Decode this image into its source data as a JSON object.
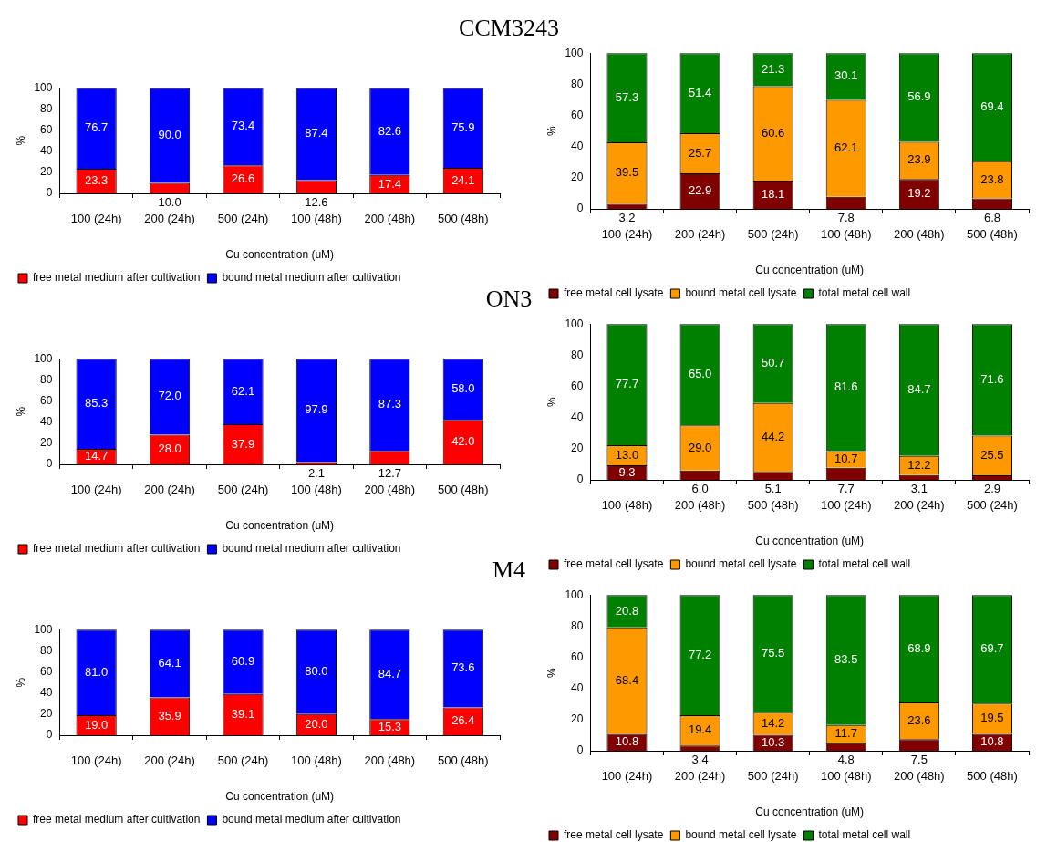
{
  "chart_data": [
    {
      "type": "bar",
      "stacked": true,
      "title": "CCM3243",
      "xlabel": "Cu concentration (uM)",
      "ylabel": "%",
      "categories": [
        "100 (24h)",
        "200 (24h)",
        "500 (24h)",
        "100 (48h)",
        "200 (48h)",
        "500 (48h)"
      ],
      "ylim": [
        0,
        100
      ],
      "yticks": [
        0,
        20,
        40,
        60,
        80,
        100
      ],
      "grid": false,
      "legend": "bottom",
      "series": [
        {
          "name": "free metal medium after cultivation",
          "color": "#ff0000",
          "values": [
            23.3,
            10.0,
            26.6,
            12.6,
            17.4,
            24.1
          ],
          "value_labels": [
            "23.3",
            "10.0",
            "26.6",
            "12.6",
            "17.4",
            "24.1"
          ]
        },
        {
          "name": "bound metal medium after cultivation",
          "color": "#0000ff",
          "values": [
            76.7,
            90.0,
            73.4,
            87.4,
            82.6,
            75.9
          ],
          "value_labels": [
            "76.7",
            "90.0",
            "73.4",
            "87.4",
            "82.6",
            "75.9"
          ]
        }
      ]
    },
    {
      "type": "bar",
      "stacked": true,
      "xlabel": "Cu concentration (uM)",
      "ylabel": "%",
      "categories": [
        "100 (24h)",
        "200 (24h)",
        "500 (24h)",
        "100 (48h)",
        "200 (48h)",
        "500 (48h)"
      ],
      "ylim": [
        0,
        100
      ],
      "yticks": [
        0,
        20,
        40,
        60,
        80,
        100
      ],
      "grid": false,
      "legend": "bottom",
      "series": [
        {
          "name": "free metal cell lysate",
          "color": "#800000",
          "values": [
            3.2,
            22.9,
            18.1,
            7.8,
            19.2,
            6.8
          ],
          "value_labels": [
            "3.2",
            "22.9",
            "18.1",
            "7.8",
            "19.2",
            "6.8"
          ]
        },
        {
          "name": "bound metal cell lysate",
          "color": "#ff9900",
          "values": [
            39.5,
            25.7,
            60.6,
            62.1,
            23.9,
            23.8
          ],
          "value_labels": [
            "39.5",
            "25.7",
            "60.6",
            "62.1",
            "23.9",
            "23.8"
          ]
        },
        {
          "name": "total metal cell wall",
          "color": "#008000",
          "values": [
            57.3,
            51.4,
            21.3,
            30.1,
            56.9,
            69.4
          ],
          "value_labels": [
            "57.3",
            "51.4",
            "21.3",
            "30.1",
            "56.9",
            "69.4"
          ]
        }
      ]
    },
    {
      "type": "bar",
      "stacked": true,
      "title": "ON3",
      "xlabel": "Cu concentration (uM)",
      "ylabel": "%",
      "categories": [
        "100 (24h)",
        "200 (24h)",
        "500 (24h)",
        "100 (48h)",
        "200 (48h)",
        "500 (48h)"
      ],
      "ylim": [
        0,
        100
      ],
      "yticks": [
        0,
        20,
        40,
        60,
        80,
        100
      ],
      "grid": false,
      "legend": "bottom",
      "series": [
        {
          "name": "free metal medium after cultivation",
          "color": "#ff0000",
          "values": [
            14.7,
            28.0,
            37.9,
            2.1,
            12.7,
            42.0
          ],
          "value_labels": [
            "14.7",
            "28.0",
            "37.9",
            "2.1",
            "12.7",
            "42.0"
          ]
        },
        {
          "name": "bound metal medium after cultivation",
          "color": "#0000ff",
          "values": [
            85.3,
            72.0,
            62.1,
            97.9,
            87.3,
            58.0
          ],
          "value_labels": [
            "85.3",
            "72.0",
            "62.1",
            "97.9",
            "87.3",
            "58.0"
          ]
        }
      ]
    },
    {
      "type": "bar",
      "stacked": true,
      "xlabel": "Cu concentration (uM)",
      "ylabel": "%",
      "categories": [
        "100 (48h)",
        "200 (48h)",
        "500 (48h)",
        "100 (24h)",
        "200 (24h)",
        "500 (24h)"
      ],
      "ylim": [
        0,
        100
      ],
      "yticks": [
        0,
        20,
        40,
        60,
        80,
        100
      ],
      "grid": false,
      "legend": "bottom",
      "series": [
        {
          "name": "free metal cell lysate",
          "color": "#800000",
          "values": [
            9.3,
            6.0,
            5.1,
            7.7,
            3.1,
            2.9
          ],
          "value_labels": [
            "9.3",
            "6.0",
            "5.1",
            "7.7",
            "3.1",
            "2.9"
          ]
        },
        {
          "name": "bound metal cell lysate",
          "color": "#ff9900",
          "values": [
            13.0,
            29.0,
            44.2,
            10.7,
            12.2,
            25.5
          ],
          "value_labels": [
            "13.0",
            "29.0",
            "44.2",
            "10.7",
            "12.2",
            "25.5"
          ]
        },
        {
          "name": "total metal cell wall",
          "color": "#008000",
          "values": [
            77.7,
            65.0,
            50.7,
            81.6,
            84.7,
            71.6
          ],
          "value_labels": [
            "77.7",
            "65.0",
            "50.7",
            "81.6",
            "84.7",
            "71.6"
          ]
        }
      ]
    },
    {
      "type": "bar",
      "stacked": true,
      "title": "M4",
      "xlabel": "Cu concentration (uM)",
      "ylabel": "%",
      "categories": [
        "100 (24h)",
        "200 (24h)",
        "500 (24h)",
        "100 (48h)",
        "200 (48h)",
        "500 (48h)"
      ],
      "ylim": [
        0,
        100
      ],
      "yticks": [
        0,
        20,
        40,
        60,
        80,
        100
      ],
      "grid": false,
      "legend": "bottom",
      "series": [
        {
          "name": "free metal medium after cultivation",
          "color": "#ff0000",
          "values": [
            19.0,
            35.9,
            39.1,
            20.0,
            15.3,
            26.4
          ],
          "value_labels": [
            "19.0",
            "35.9",
            "39.1",
            "20.0",
            "15.3",
            "26.4"
          ]
        },
        {
          "name": "bound metal medium after cultivation",
          "color": "#0000ff",
          "values": [
            81.0,
            64.1,
            60.9,
            80.0,
            84.7,
            73.6
          ],
          "value_labels": [
            "81.0",
            "64.1",
            "60.9",
            "80.0",
            "84.7",
            "73.6"
          ]
        }
      ]
    },
    {
      "type": "bar",
      "stacked": true,
      "xlabel": "Cu concentration (uM)",
      "ylabel": "%",
      "categories": [
        "100 (24h)",
        "200 (24h)",
        "500 (24h)",
        "100 (48h)",
        "200 (48h)",
        "500 (48h)"
      ],
      "ylim": [
        0,
        100
      ],
      "yticks": [
        0,
        20,
        40,
        60,
        80,
        100
      ],
      "grid": false,
      "legend": "bottom",
      "series": [
        {
          "name": "free metal cell lysate",
          "color": "#800000",
          "values": [
            10.8,
            3.4,
            10.3,
            4.8,
            7.5,
            10.8
          ],
          "value_labels": [
            "10.8",
            "3.4",
            "10.3",
            "4.8",
            "7.5",
            "10.8"
          ]
        },
        {
          "name": "bound metal cell lysate",
          "color": "#ff9900",
          "values": [
            68.4,
            19.4,
            14.2,
            11.7,
            23.6,
            19.5
          ],
          "value_labels": [
            "68.4",
            "19.4",
            "14.2",
            "11.7",
            "23.6",
            "19.5"
          ]
        },
        {
          "name": "total metal cell wall",
          "color": "#008000",
          "values": [
            20.8,
            77.2,
            75.5,
            83.5,
            68.9,
            69.7
          ],
          "value_labels": [
            "20.8",
            "77.2",
            "75.5",
            "83.5",
            "68.9",
            "69.7"
          ]
        }
      ]
    }
  ]
}
